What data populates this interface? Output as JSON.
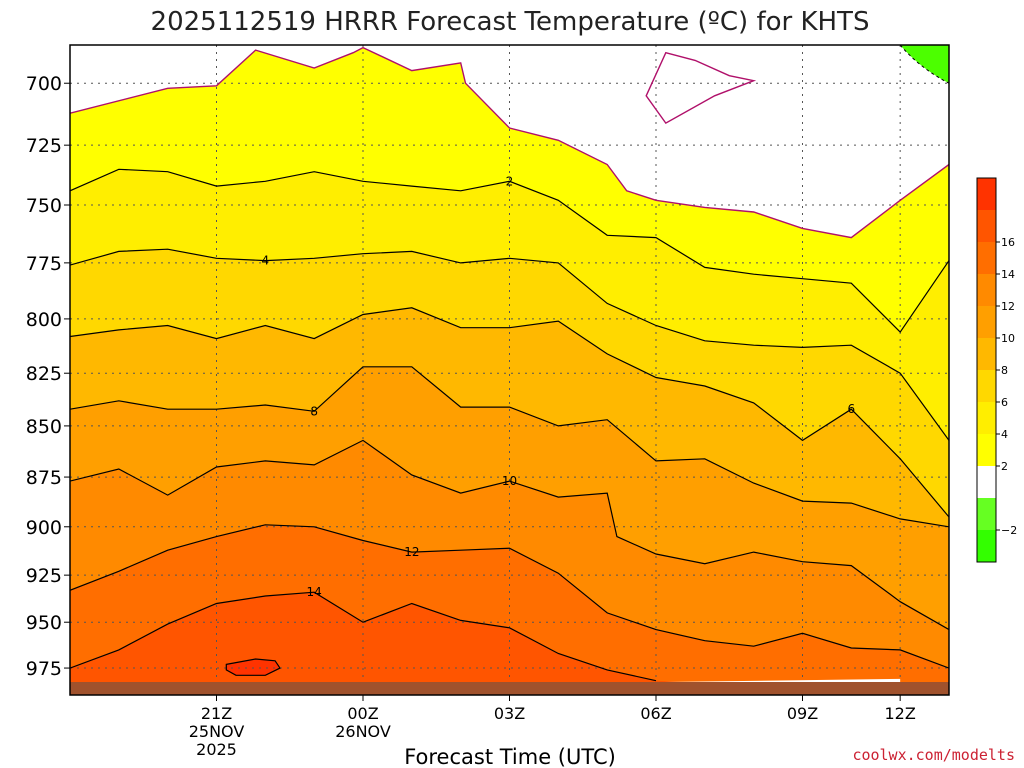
{
  "chart_data": {
    "type": "contour",
    "title": "2025112519 HRRR Forecast Temperature (ºC) for KHTS",
    "xlabel": "Forecast Time (UTC)",
    "ylabel": "",
    "credit": "coolwx.com/modelts",
    "y_scale": "log (pressure, inverted)",
    "ylim_hpa": [
      990,
      685
    ],
    "xlim_hours_from_init": [
      -5,
      13
    ],
    "y_ticks": [
      "700",
      "725",
      "750",
      "775",
      "800",
      "825",
      "850",
      "875",
      "900",
      "925",
      "950",
      "975"
    ],
    "x_ticks": [
      {
        "label": "21Z",
        "sub": [
          "25NOV",
          "2025"
        ]
      },
      {
        "label": "00Z",
        "sub": [
          "26NOV"
        ]
      },
      {
        "label": "03Z",
        "sub": []
      },
      {
        "label": "06Z",
        "sub": []
      },
      {
        "label": "09Z",
        "sub": []
      },
      {
        "label": "12Z",
        "sub": []
      }
    ],
    "grid": "dotted",
    "ground_color": "#a0522d",
    "colorbar": {
      "placement": "right",
      "levels": [
        -4,
        -2,
        0,
        2,
        4,
        6,
        8,
        10,
        12,
        14,
        16,
        18
      ],
      "colors": [
        "#33ff00",
        "#66ff22",
        "#ffffff",
        "#ffff00",
        "#ffee00",
        "#ffd800",
        "#ffb800",
        "#ff9f00",
        "#ff8a00",
        "#ff6e00",
        "#ff5500",
        "#ff3300"
      ],
      "labels": [
        {
          "value": -2,
          "text": "−2"
        },
        {
          "value": 2,
          "text": "2"
        },
        {
          "value": 4,
          "text": "4"
        },
        {
          "value": 6,
          "text": "6"
        },
        {
          "value": 8,
          "text": "8"
        },
        {
          "value": 10,
          "text": "10"
        },
        {
          "value": 12,
          "text": "12"
        },
        {
          "value": 14,
          "text": "14"
        },
        {
          "value": 16,
          "text": "16"
        }
      ]
    },
    "fill_bands": [
      {
        "level": 16,
        "color": "#ff3300"
      },
      {
        "level": 14,
        "color": "#ff5500"
      },
      {
        "level": 12,
        "color": "#ff6e00"
      },
      {
        "level": 10,
        "color": "#ff8a00"
      },
      {
        "level": 8,
        "color": "#ff9f00"
      },
      {
        "level": 6,
        "color": "#ffb800"
      },
      {
        "level": 4,
        "color": "#ffd800"
      },
      {
        "level": 2,
        "color": "#ffee00"
      },
      {
        "level": 0,
        "color": "#ffff00"
      }
    ],
    "contours": [
      {
        "level": 0,
        "color": "#b0106a",
        "points": [
          [
            -5,
            712
          ],
          [
            -3,
            702
          ],
          [
            -2,
            701
          ],
          [
            -1.2,
            687
          ],
          [
            0,
            694
          ],
          [
            0.8,
            688
          ],
          [
            1,
            686
          ],
          [
            2,
            695
          ],
          [
            3,
            692
          ],
          [
            3.1,
            700
          ],
          [
            4,
            718
          ],
          [
            5,
            723
          ],
          [
            6,
            733
          ],
          [
            6.4,
            744
          ],
          [
            7,
            748
          ],
          [
            8,
            751
          ],
          [
            9,
            753
          ],
          [
            10,
            760
          ],
          [
            11,
            764
          ],
          [
            12,
            748
          ],
          [
            13,
            733
          ]
        ]
      },
      {
        "level": 0,
        "color": "#b0106a",
        "closed": true,
        "points": [
          [
            7.8,
            691
          ],
          [
            8.5,
            697
          ],
          [
            9.0,
            699
          ],
          [
            8.2,
            705
          ],
          [
            7.2,
            716
          ],
          [
            6.8,
            705
          ],
          [
            7.2,
            688
          ]
        ]
      },
      {
        "level": 2,
        "color": "#000000",
        "label_at": 4,
        "points": [
          [
            -5,
            744
          ],
          [
            -4,
            735
          ],
          [
            -3,
            736
          ],
          [
            -2,
            742
          ],
          [
            -1,
            740
          ],
          [
            0,
            736
          ],
          [
            1,
            740
          ],
          [
            2,
            742
          ],
          [
            3,
            744
          ],
          [
            4,
            740
          ],
          [
            5,
            748
          ],
          [
            6,
            763
          ],
          [
            7,
            764
          ],
          [
            8,
            777
          ],
          [
            9,
            780
          ],
          [
            10,
            782
          ],
          [
            11,
            784
          ],
          [
            12,
            806
          ],
          [
            13,
            774
          ]
        ]
      },
      {
        "level": 4,
        "color": "#000000",
        "label_at": -1,
        "points": [
          [
            -5,
            776
          ],
          [
            -4,
            770
          ],
          [
            -3,
            769
          ],
          [
            -2,
            773
          ],
          [
            -1,
            774
          ],
          [
            0,
            773
          ],
          [
            1,
            771
          ],
          [
            2,
            770
          ],
          [
            3,
            775
          ],
          [
            4,
            773
          ],
          [
            5,
            775
          ],
          [
            6,
            793
          ],
          [
            7,
            803
          ],
          [
            8,
            810
          ],
          [
            9,
            812
          ],
          [
            10,
            813
          ],
          [
            11,
            812
          ],
          [
            12,
            825
          ],
          [
            13,
            857
          ]
        ]
      },
      {
        "level": 6,
        "color": "#000000",
        "label_at": 11,
        "points": [
          [
            -5,
            808
          ],
          [
            -4,
            805
          ],
          [
            -3,
            803
          ],
          [
            -2,
            809
          ],
          [
            -1,
            803
          ],
          [
            0,
            809
          ],
          [
            1,
            798
          ],
          [
            2,
            795
          ],
          [
            3,
            804
          ],
          [
            4,
            804
          ],
          [
            5,
            801
          ],
          [
            6,
            816
          ],
          [
            7,
            827
          ],
          [
            8,
            831
          ],
          [
            9,
            839
          ],
          [
            10,
            857
          ],
          [
            11,
            842
          ],
          [
            12,
            866
          ],
          [
            13,
            895
          ]
        ]
      },
      {
        "level": 8,
        "color": "#000000",
        "label_at": 0,
        "points": [
          [
            -5,
            842
          ],
          [
            -4,
            838
          ],
          [
            -3,
            842
          ],
          [
            -2,
            842
          ],
          [
            -1,
            840
          ],
          [
            0,
            843
          ],
          [
            1,
            822
          ],
          [
            2,
            822
          ],
          [
            3,
            841
          ],
          [
            4,
            841
          ],
          [
            5,
            850
          ],
          [
            6,
            847
          ],
          [
            7,
            867
          ],
          [
            8,
            866
          ],
          [
            9,
            878
          ],
          [
            10,
            887
          ],
          [
            11,
            888
          ],
          [
            12,
            896
          ],
          [
            13,
            900
          ]
        ]
      },
      {
        "level": 10,
        "color": "#000000",
        "label_at": 4,
        "points": [
          [
            -5,
            877
          ],
          [
            -4,
            871
          ],
          [
            -3,
            884
          ],
          [
            -2,
            870
          ],
          [
            -1,
            867
          ],
          [
            0,
            869
          ],
          [
            1,
            857
          ],
          [
            2,
            874
          ],
          [
            3,
            883
          ],
          [
            4,
            877
          ],
          [
            5,
            885
          ],
          [
            6,
            883
          ],
          [
            6.2,
            905
          ],
          [
            7,
            914
          ],
          [
            8,
            919
          ],
          [
            9,
            913
          ],
          [
            10,
            918
          ],
          [
            11,
            920
          ],
          [
            12,
            939
          ],
          [
            13,
            954
          ]
        ]
      },
      {
        "level": 12,
        "color": "#000000",
        "label_at": 2,
        "points": [
          [
            -5,
            933
          ],
          [
            -4,
            923
          ],
          [
            -3,
            912
          ],
          [
            -2,
            905
          ],
          [
            -1,
            899
          ],
          [
            0,
            900
          ],
          [
            1,
            907
          ],
          [
            2,
            913
          ],
          [
            3,
            912
          ],
          [
            4,
            911
          ],
          [
            5,
            924
          ],
          [
            6,
            945
          ],
          [
            7,
            954
          ],
          [
            8,
            960
          ],
          [
            9,
            963
          ],
          [
            10,
            956
          ],
          [
            11,
            964
          ],
          [
            12,
            965
          ],
          [
            13,
            975
          ]
        ]
      },
      {
        "level": 14,
        "color": "#000000",
        "label_at": 0,
        "points": [
          [
            -5,
            975
          ],
          [
            -4,
            965
          ],
          [
            -3,
            951
          ],
          [
            -2,
            940
          ],
          [
            -1,
            936
          ],
          [
            0,
            934
          ],
          [
            1,
            950
          ],
          [
            2,
            940
          ],
          [
            3,
            949
          ],
          [
            4,
            953
          ],
          [
            5,
            967
          ],
          [
            6,
            976
          ],
          [
            7,
            982
          ]
        ]
      },
      {
        "level": 16,
        "color": "#000000",
        "closed": true,
        "points": [
          [
            -1.8,
            973
          ],
          [
            -1.2,
            970
          ],
          [
            -0.8,
            971
          ],
          [
            -0.7,
            975
          ],
          [
            -1.0,
            979
          ],
          [
            -1.6,
            979
          ],
          [
            -1.8,
            976
          ]
        ]
      }
    ]
  }
}
